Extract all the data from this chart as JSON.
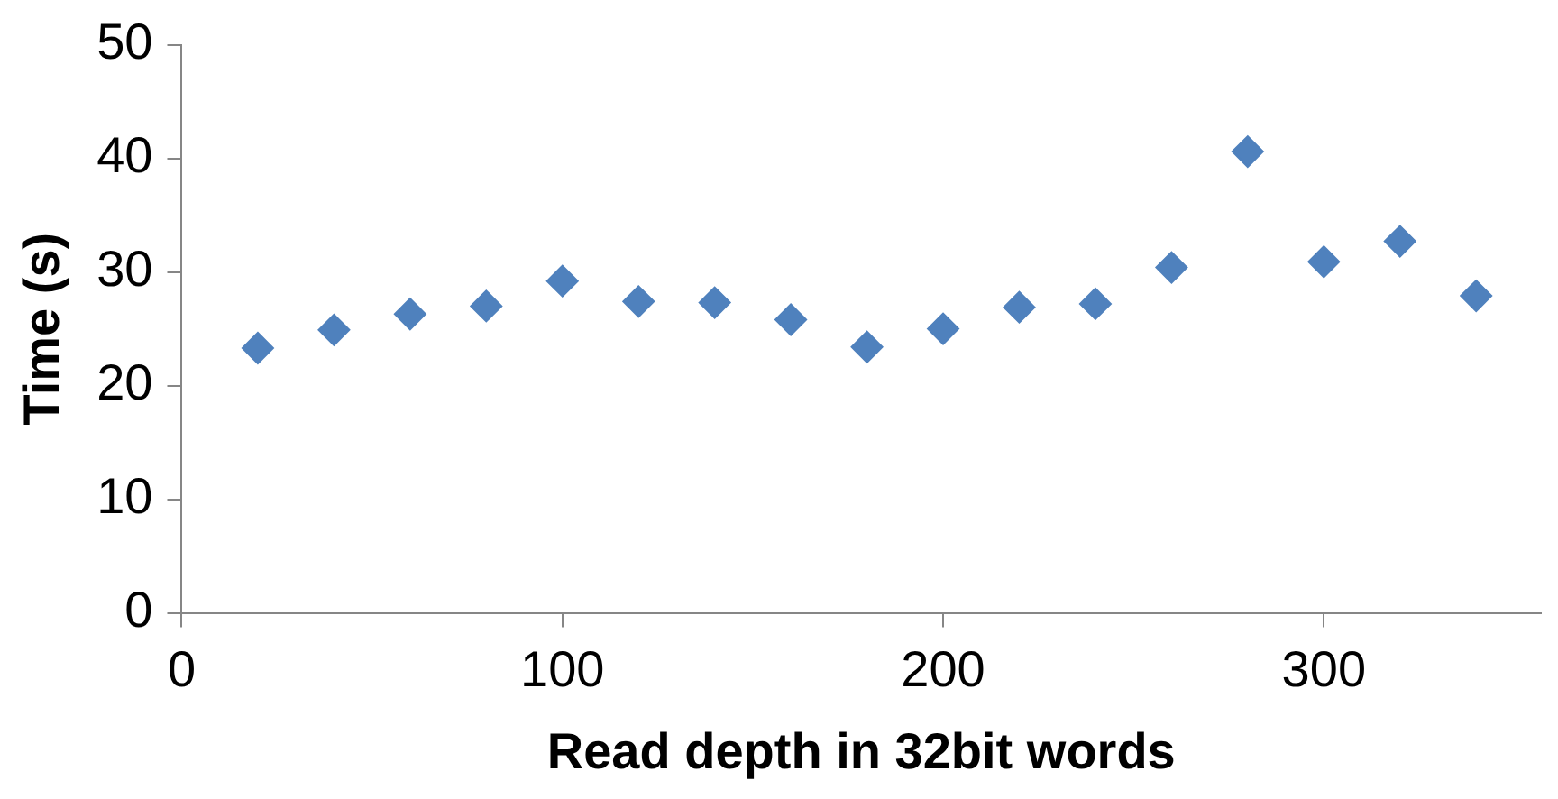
{
  "chart_data": {
    "type": "scatter",
    "xlabel": "Read depth in 32bit words",
    "ylabel": "Time (s)",
    "x": [
      20,
      40,
      60,
      80,
      100,
      120,
      140,
      160,
      180,
      200,
      220,
      240,
      260,
      280,
      300,
      320,
      340
    ],
    "series": [
      {
        "color": "#4f81bd",
        "values": [
          23.3,
          24.9,
          26.3,
          27,
          29.2,
          27.4,
          27.3,
          25.8,
          23.4,
          25,
          26.9,
          27.2,
          30.4,
          40.6,
          30.9,
          32.7,
          27.9
        ]
      }
    ],
    "xlim": [
      0,
      357
    ],
    "xticks": [
      0,
      100,
      200,
      300
    ],
    "ylim": [
      0,
      50
    ],
    "yticks": [
      0,
      10,
      20,
      30,
      40,
      50
    ],
    "grid": false,
    "legend": false,
    "marker": "diamond"
  }
}
